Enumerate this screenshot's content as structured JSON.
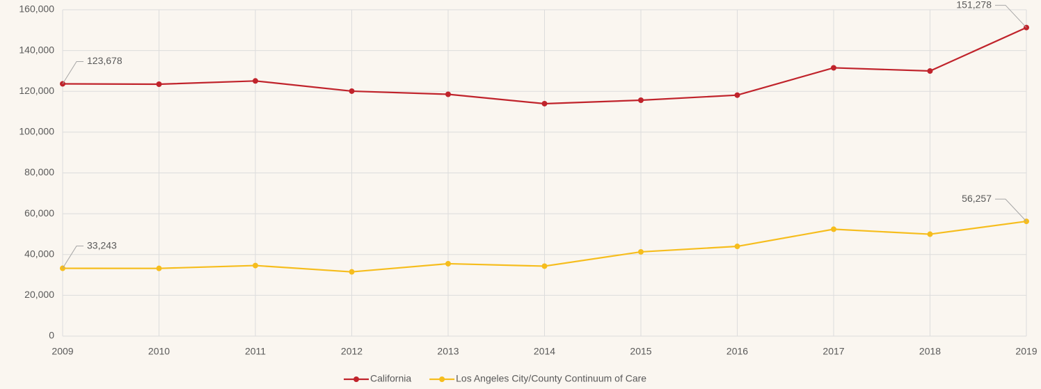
{
  "chart_data": {
    "type": "line",
    "x": [
      2009,
      2010,
      2011,
      2012,
      2013,
      2014,
      2015,
      2016,
      2017,
      2018,
      2019
    ],
    "xlim": [
      2009,
      2019
    ],
    "xticks": [
      2009,
      2010,
      2011,
      2012,
      2013,
      2014,
      2015,
      2016,
      2017,
      2018,
      2019
    ],
    "ylim": [
      0,
      160000
    ],
    "yticks": [
      0,
      {
        "value": 20000,
        "label": "20,000"
      },
      {
        "value": 40000,
        "label": "40,000"
      },
      {
        "value": 60000,
        "label": "60,000"
      },
      {
        "value": 80000,
        "label": "80,000"
      },
      {
        "value": 100000,
        "label": "100,000"
      },
      {
        "value": 120000,
        "label": "120,000"
      },
      {
        "value": 140000,
        "label": "140,000"
      },
      {
        "value": 160000,
        "label": "160,000"
      }
    ],
    "grid": true,
    "legend": "bottom",
    "series": [
      {
        "name": "California",
        "color": "#c0232b",
        "values": [
          123678,
          123500,
          125100,
          120100,
          118550,
          113950,
          115650,
          118140,
          131530,
          129970,
          151278
        ],
        "value_labels": [
          "123,678",
          null,
          null,
          null,
          null,
          null,
          null,
          null,
          null,
          null,
          "151,278"
        ]
      },
      {
        "name": "Los Angeles City/County Continuum of Care",
        "color": "#f6bd1d",
        "values": [
          33243,
          33200,
          34600,
          31500,
          35500,
          34300,
          41300,
          44000,
          52400,
          49960,
          56257
        ],
        "value_labels": [
          "33,243",
          null,
          null,
          null,
          null,
          null,
          null,
          null,
          null,
          null,
          "56,257"
        ]
      }
    ]
  }
}
